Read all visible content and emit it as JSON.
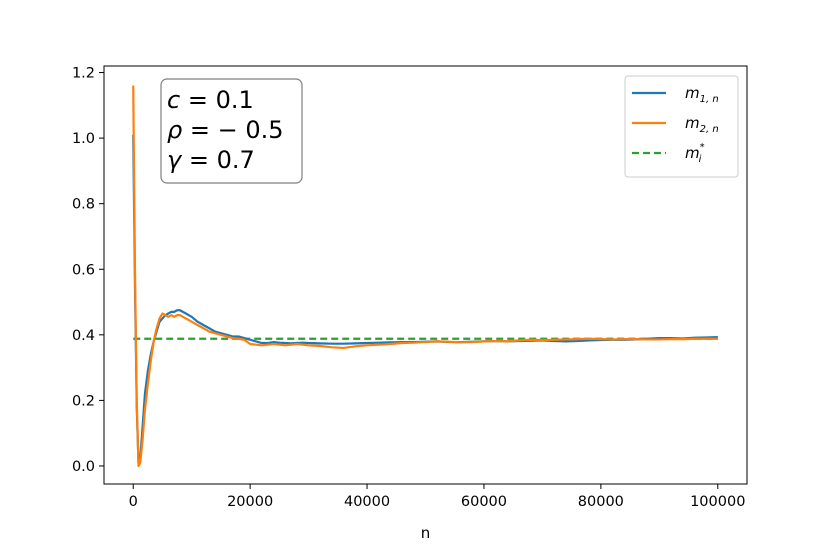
{
  "chart_data": {
    "type": "line",
    "xlabel": "n",
    "ylabel": "",
    "xlim": [
      -5000,
      105000
    ],
    "ylim": [
      -0.055,
      1.22
    ],
    "xticks": [
      0,
      20000,
      40000,
      60000,
      80000,
      100000
    ],
    "xtick_labels": [
      "0",
      "20000",
      "40000",
      "60000",
      "80000",
      "100000"
    ],
    "yticks": [
      0.0,
      0.2,
      0.4,
      0.6,
      0.8,
      1.0,
      1.2
    ],
    "ytick_labels": [
      "0.0",
      "0.2",
      "0.4",
      "0.6",
      "0.8",
      "1.0",
      "1.2"
    ],
    "grid": false,
    "legend_position": "top-right",
    "annotation": {
      "lines": [
        {
          "sym": "c",
          "rest": " = 0.1"
        },
        {
          "sym": "ρ",
          "rest": " = − 0.5"
        },
        {
          "sym": "γ",
          "rest": " = 0.7"
        }
      ]
    },
    "series": [
      {
        "name": "m_{1,n}",
        "legend_main": "m",
        "legend_sub": "1, n",
        "color": "#1f77b4",
        "style": "solid",
        "x": [
          0,
          300,
          600,
          900,
          1200,
          1600,
          2000,
          2500,
          3000,
          3500,
          4000,
          4500,
          5000,
          5500,
          6000,
          6500,
          7000,
          7500,
          8000,
          8500,
          9000,
          9500,
          10000,
          11000,
          12000,
          13000,
          14000,
          15000,
          16000,
          17000,
          18000,
          19000,
          20000,
          21000,
          22000,
          23000,
          24000,
          25000,
          26000,
          27000,
          28000,
          29000,
          30000,
          32000,
          34000,
          36000,
          38000,
          40000,
          42000,
          44000,
          46000,
          48000,
          50000,
          52000,
          54000,
          56000,
          58000,
          60000,
          62000,
          64000,
          66000,
          68000,
          70000,
          72000,
          74000,
          76000,
          78000,
          80000,
          82000,
          84000,
          86000,
          88000,
          90000,
          92000,
          94000,
          96000,
          98000,
          100000
        ],
        "values": [
          1.01,
          0.55,
          0.18,
          0.01,
          0.02,
          0.12,
          0.22,
          0.29,
          0.34,
          0.38,
          0.41,
          0.44,
          0.45,
          0.46,
          0.465,
          0.47,
          0.47,
          0.475,
          0.475,
          0.47,
          0.465,
          0.46,
          0.455,
          0.44,
          0.43,
          0.42,
          0.41,
          0.405,
          0.4,
          0.395,
          0.395,
          0.39,
          0.385,
          0.38,
          0.375,
          0.375,
          0.378,
          0.376,
          0.375,
          0.374,
          0.375,
          0.376,
          0.375,
          0.374,
          0.373,
          0.373,
          0.374,
          0.375,
          0.376,
          0.377,
          0.378,
          0.378,
          0.379,
          0.38,
          0.378,
          0.378,
          0.379,
          0.38,
          0.381,
          0.38,
          0.381,
          0.382,
          0.383,
          0.381,
          0.38,
          0.381,
          0.383,
          0.384,
          0.385,
          0.385,
          0.386,
          0.388,
          0.39,
          0.39,
          0.389,
          0.391,
          0.392,
          0.393
        ]
      },
      {
        "name": "m_{2,n}",
        "legend_main": "m",
        "legend_sub": "2, n",
        "color": "#ff7f0e",
        "style": "solid",
        "x": [
          0,
          300,
          600,
          900,
          1200,
          1600,
          2000,
          2500,
          3000,
          3500,
          4000,
          4500,
          5000,
          5500,
          6000,
          6500,
          7000,
          7500,
          8000,
          8500,
          9000,
          9500,
          10000,
          11000,
          12000,
          13000,
          14000,
          15000,
          16000,
          17000,
          18000,
          19000,
          20000,
          21000,
          22000,
          23000,
          24000,
          25000,
          26000,
          27000,
          28000,
          29000,
          30000,
          32000,
          34000,
          36000,
          38000,
          40000,
          42000,
          44000,
          46000,
          48000,
          50000,
          52000,
          54000,
          56000,
          58000,
          60000,
          62000,
          64000,
          66000,
          68000,
          70000,
          72000,
          74000,
          76000,
          78000,
          80000,
          82000,
          84000,
          86000,
          88000,
          90000,
          92000,
          94000,
          96000,
          98000,
          100000
        ],
        "values": [
          1.16,
          0.6,
          0.2,
          0.0,
          0.01,
          0.08,
          0.17,
          0.25,
          0.32,
          0.38,
          0.42,
          0.45,
          0.465,
          0.46,
          0.455,
          0.46,
          0.455,
          0.46,
          0.46,
          0.455,
          0.45,
          0.445,
          0.44,
          0.43,
          0.42,
          0.41,
          0.405,
          0.4,
          0.395,
          0.39,
          0.388,
          0.385,
          0.372,
          0.37,
          0.368,
          0.37,
          0.372,
          0.37,
          0.368,
          0.37,
          0.372,
          0.37,
          0.368,
          0.366,
          0.362,
          0.36,
          0.365,
          0.368,
          0.37,
          0.372,
          0.375,
          0.376,
          0.378,
          0.38,
          0.379,
          0.377,
          0.378,
          0.38,
          0.381,
          0.38,
          0.383,
          0.385,
          0.384,
          0.385,
          0.386,
          0.387,
          0.388,
          0.387,
          0.386,
          0.387,
          0.387,
          0.386,
          0.386,
          0.387,
          0.387,
          0.388,
          0.388,
          0.388
        ]
      },
      {
        "name": "m_i^*",
        "legend_main": "m",
        "legend_sub": "i",
        "legend_sup": "*",
        "color": "#2ca02c",
        "style": "dashed",
        "x": [
          0,
          100000
        ],
        "values": [
          0.388,
          0.388
        ]
      }
    ]
  }
}
